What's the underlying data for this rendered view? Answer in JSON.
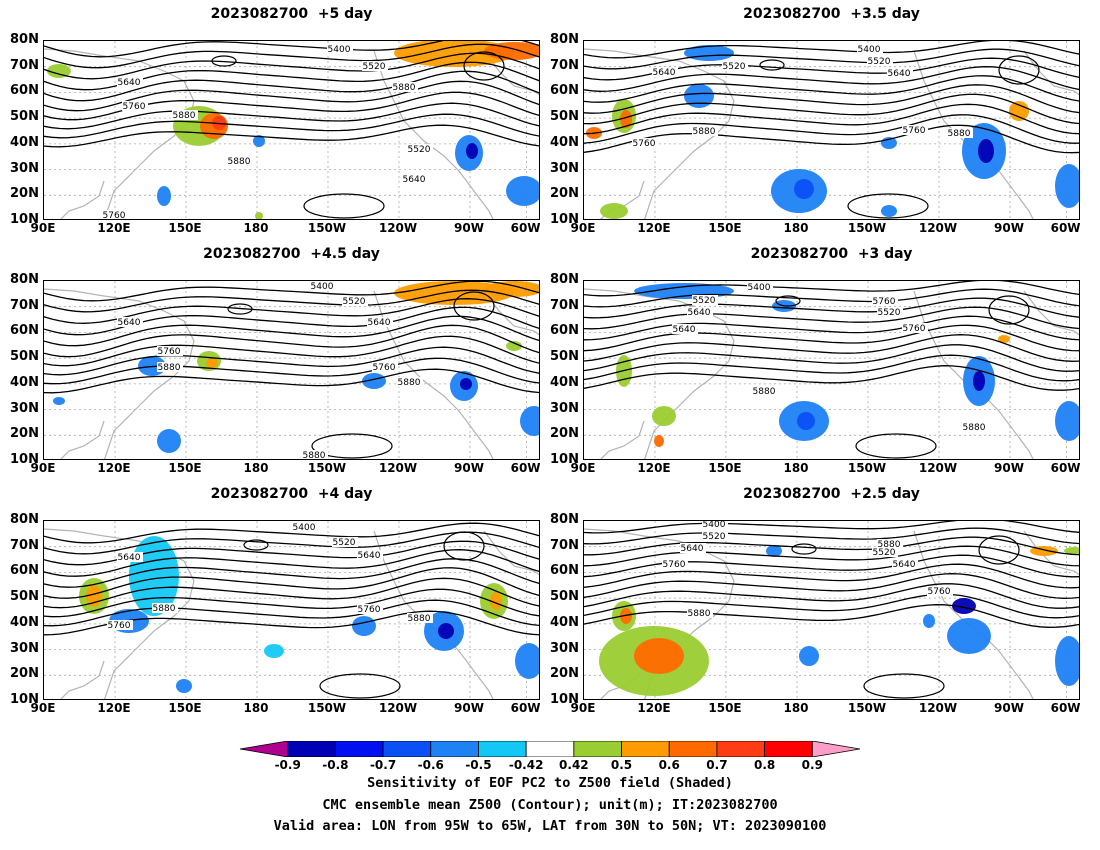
{
  "panels": [
    {
      "title": "2023082700  +5 day",
      "contour_labels": [
        "5400",
        "5520",
        "5640",
        "5760",
        "5880",
        "5880",
        "5520",
        "5640",
        "5760",
        "5880"
      ]
    },
    {
      "title": "2023082700  +3.5 day",
      "contour_labels": [
        "5400",
        "5520",
        "5640",
        "5640",
        "5760",
        "5880",
        "5880",
        "5760",
        "5520"
      ]
    },
    {
      "title": "2023082700  +4.5 day",
      "contour_labels": [
        "5400",
        "5520",
        "5640",
        "5640",
        "5760",
        "5880",
        "5760",
        "5880",
        "5880"
      ]
    },
    {
      "title": "2023082700  +3 day",
      "contour_labels": [
        "5400",
        "5520",
        "5640",
        "5760",
        "5520",
        "5640",
        "5760",
        "5880",
        "5880"
      ]
    },
    {
      "title": "2023082700  +4 day",
      "contour_labels": [
        "5400",
        "5520",
        "5640",
        "5640",
        "5880",
        "5760",
        "5760",
        "5880"
      ]
    },
    {
      "title": "2023082700  +2.5 day",
      "contour_labels": [
        "5400",
        "5520",
        "5640",
        "5760",
        "5880",
        "5520",
        "5640",
        "5760",
        "5880"
      ]
    }
  ],
  "lat_labels": [
    "80N",
    "70N",
    "60N",
    "50N",
    "40N",
    "30N",
    "20N",
    "10N"
  ],
  "lon_labels": [
    "90E",
    "120E",
    "150E",
    "180",
    "150W",
    "120W",
    "90W",
    "60W"
  ],
  "colorbar": {
    "labels": [
      "-0.9",
      "-0.8",
      "-0.7",
      "-0.6",
      "-0.5",
      "-0.42",
      "0.42",
      "0.5",
      "0.6",
      "0.7",
      "0.8",
      "0.9"
    ],
    "colors": [
      "#b0008f",
      "#0000b4",
      "#0010f0",
      "#0a50f5",
      "#1e82f5",
      "#14c8f5",
      "#ffffff",
      "#9acd32",
      "#ff9b00",
      "#ff6a00",
      "#ff3c14",
      "#ff0000",
      "#ff9ec8"
    ]
  },
  "captions": [
    "Sensitivity of EOF PC2 to Z500 field (Shaded)",
    "CMC ensemble mean Z500 (Contour); unit(m); IT:2023082700",
    "Valid area: LON from 95W to 65W, LAT from 30N to 50N; VT: 2023090100"
  ]
}
